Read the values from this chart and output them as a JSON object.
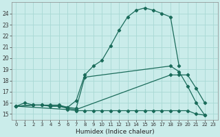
{
  "xlabel": "Humidex (Indice chaleur)",
  "bg_color": "#caecea",
  "grid_color": "#a8d8d4",
  "line_color": "#1a6b5a",
  "line1_x": [
    0,
    1,
    2,
    3,
    4,
    5,
    6,
    7,
    8,
    9,
    10,
    11,
    12,
    13,
    14,
    15,
    16,
    17,
    18,
    19
  ],
  "line1_y": [
    15.7,
    16.0,
    15.8,
    15.8,
    15.7,
    15.7,
    15.6,
    16.2,
    18.5,
    19.3,
    19.8,
    21.1,
    22.5,
    23.7,
    24.3,
    24.5,
    24.3,
    24.0,
    23.7,
    19.3
  ],
  "line2_x": [
    0,
    2,
    3,
    4,
    5,
    6,
    7,
    8,
    18,
    19,
    20,
    21,
    22
  ],
  "line2_y": [
    15.7,
    15.8,
    15.8,
    15.8,
    15.8,
    15.6,
    15.5,
    18.3,
    19.3,
    18.8,
    17.5,
    16.0,
    14.9
  ],
  "line3_x": [
    0,
    2,
    3,
    4,
    5,
    6,
    7,
    18,
    19,
    20,
    21,
    22
  ],
  "line3_y": [
    15.7,
    15.8,
    15.8,
    15.7,
    15.7,
    15.5,
    15.4,
    18.5,
    18.5,
    18.5,
    17.3,
    16.0
  ],
  "line4_x": [
    0,
    6,
    7,
    8,
    9,
    10,
    11,
    12,
    13,
    14,
    15,
    16,
    17,
    18,
    19,
    20,
    21,
    22
  ],
  "line4_y": [
    15.7,
    15.4,
    15.3,
    15.3,
    15.3,
    15.3,
    15.3,
    15.3,
    15.3,
    15.3,
    15.3,
    15.3,
    15.3,
    15.3,
    15.3,
    15.3,
    15.0,
    14.9
  ],
  "ylim": [
    14.5,
    25.0
  ],
  "xlim": [
    -0.5,
    23.5
  ],
  "yticks": [
    15,
    16,
    17,
    18,
    19,
    20,
    21,
    22,
    23,
    24
  ],
  "xticks": [
    0,
    1,
    2,
    3,
    4,
    5,
    6,
    7,
    8,
    9,
    10,
    11,
    12,
    13,
    14,
    15,
    16,
    17,
    18,
    19,
    20,
    21,
    22,
    23
  ]
}
